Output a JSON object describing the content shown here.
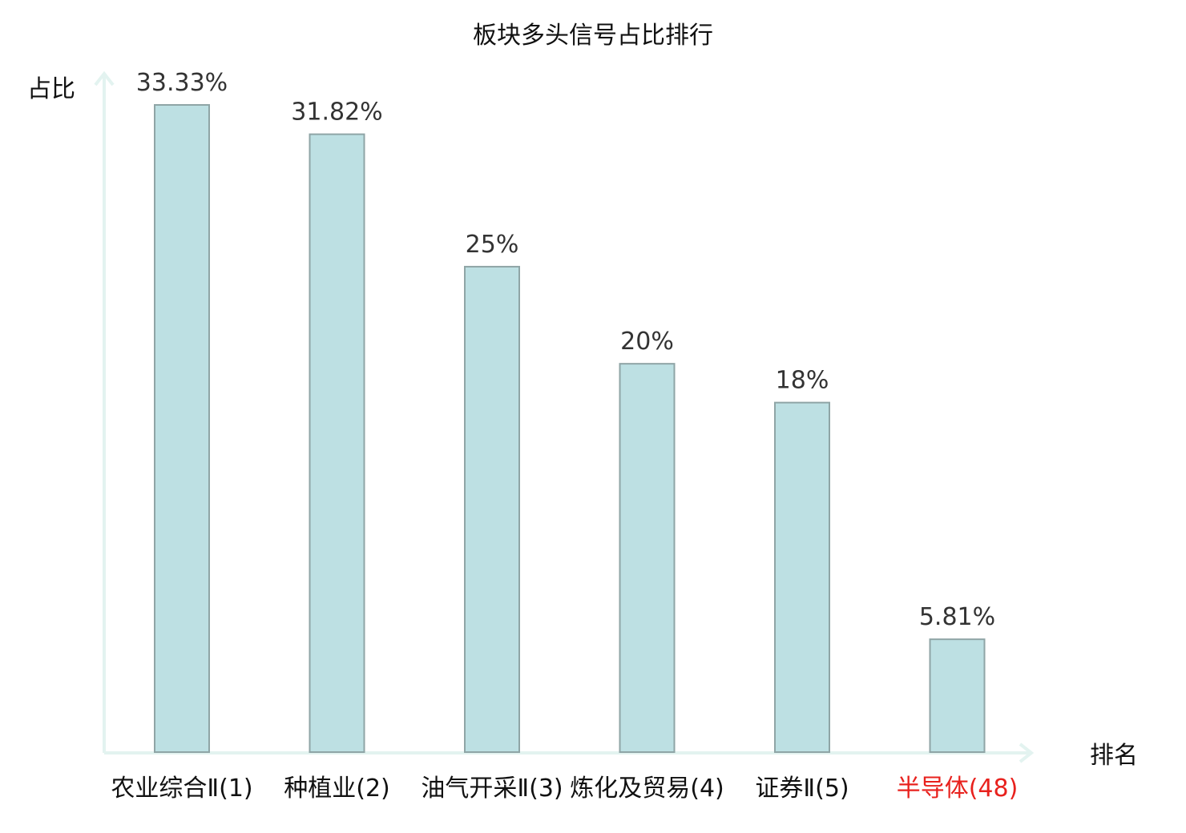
{
  "chart_data": {
    "type": "bar",
    "title": "板块多头信号占比排行",
    "xlabel": "排名",
    "ylabel": "占比",
    "categories": [
      {
        "name": "农业综合",
        "suffix": "Ⅱ(1)",
        "highlight": false
      },
      {
        "name": "种植业",
        "suffix": "(2)",
        "highlight": false
      },
      {
        "name": "油气开采",
        "suffix": "Ⅱ(3)",
        "highlight": false
      },
      {
        "name": "炼化及贸易",
        "suffix": "(4)",
        "highlight": false
      },
      {
        "name": "证券",
        "suffix": "Ⅱ(5)",
        "highlight": false
      },
      {
        "name": "半导体",
        "suffix": "(48)",
        "highlight": true
      }
    ],
    "values": [
      33.33,
      31.82,
      25,
      20,
      18,
      5.81
    ],
    "value_labels": [
      "33.33%",
      "31.82%",
      "25%",
      "20%",
      "18%",
      "5.81%"
    ],
    "ylim": [
      0,
      33.33
    ],
    "grid": false,
    "colors": {
      "bar_fill": "#bde0e3",
      "bar_stroke": "#8fa5a6",
      "axis": "#e3f3f0",
      "highlight": "#e8211d",
      "category_text": "#111111",
      "value_text": "#333333"
    }
  }
}
